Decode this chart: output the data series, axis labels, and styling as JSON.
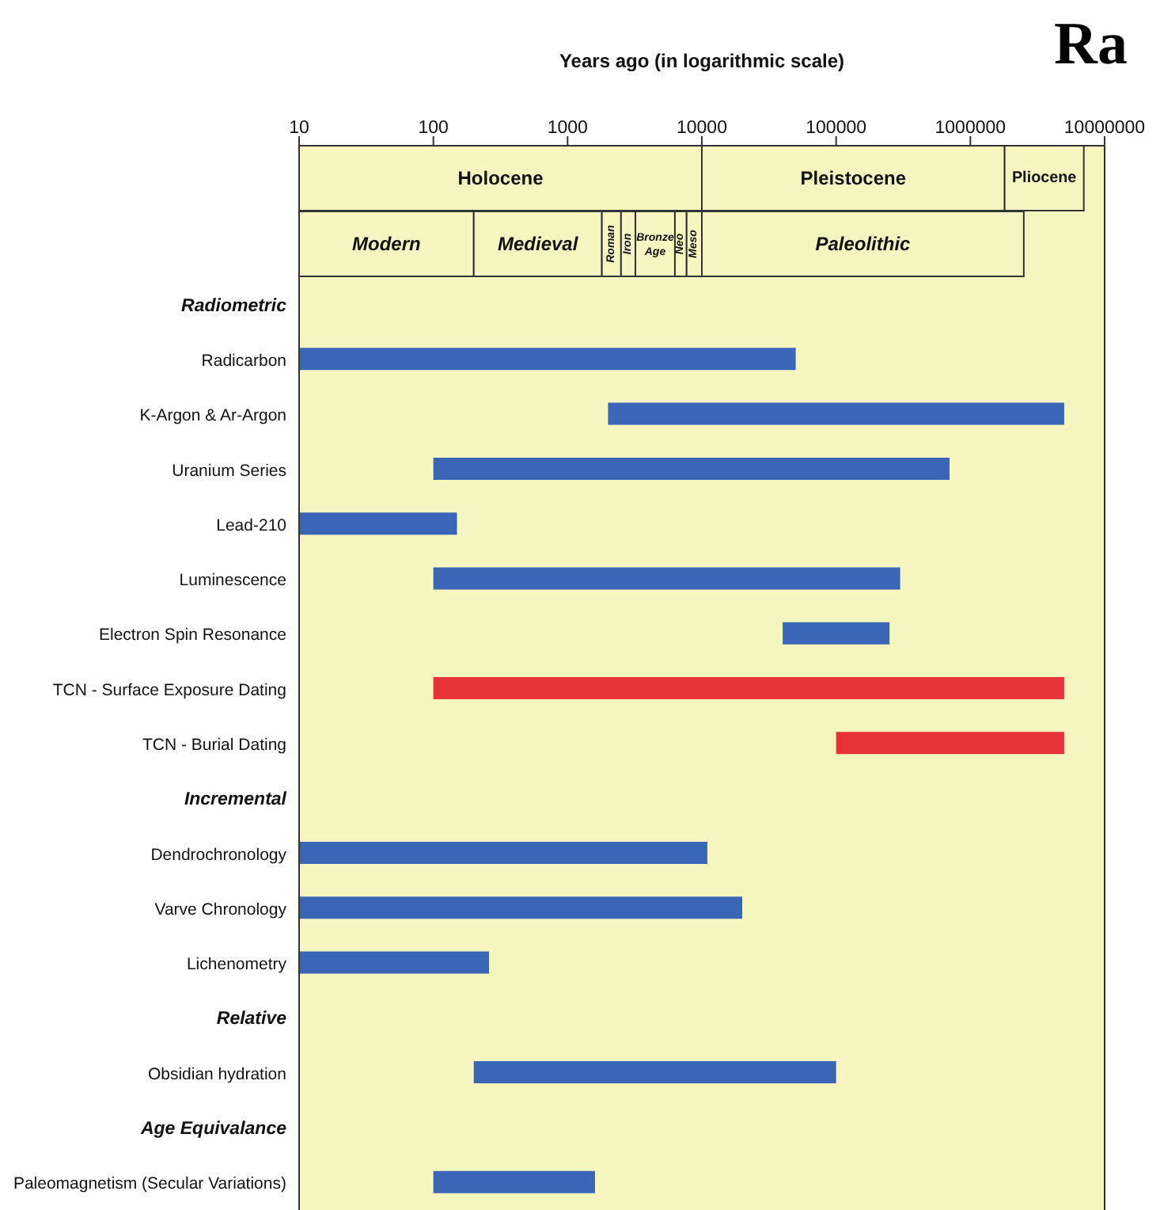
{
  "chart_data": [
    {
      "type": "bar",
      "orientation": "horizontal",
      "stacked": true,
      "title": "Ra",
      "xlabel": "Years ago (in logarithmic scale)",
      "log": "x",
      "tick_labels": "x",
      "categories": [
        null,
        null
      ],
      "series": [
        {
          "color": "#f8f6c0",
          "values": [
            9990,
            190
          ],
          "value_labels": [
            "Holocene",
            "Modern"
          ]
        },
        {
          "color": "#f8f6c0",
          "values": [
            1790000,
            1600
          ],
          "value_labels": [
            "Pleistocene",
            "Medieval"
          ]
        },
        {
          "color": "#f8f6c0",
          "values": [
            5200000,
            700
          ],
          "value_labels": [
            "Pliocene",
            "Roman"
          ]
        },
        {
          "color": "#f8f6c0",
          "values": [
            null,
            700
          ],
          "value_labels": [
            null,
            "Iron"
          ]
        },
        {
          "color": "#f8f6c0",
          "values": [
            null,
            3100
          ],
          "value_labels": [
            null,
            "Bronze Age"
          ]
        },
        {
          "color": "#f8f6c0",
          "values": [
            null,
            1400
          ],
          "value_labels": [
            null,
            "Neo"
          ]
        },
        {
          "color": "#f8f6c0",
          "values": [
            null,
            2300
          ],
          "value_labels": [
            null,
            "Meso"
          ]
        },
        {
          "color": "#f8f6c0",
          "values": [
            null,
            2490000
          ],
          "value_labels": [
            null,
            "Paleolithic"
          ]
        }
      ],
      "xlim": [
        10,
        10000000
      ],
      "xticks": [
        10,
        100,
        1000,
        10000,
        100000,
        1000000,
        10000000
      ]
    },
    {
      "type": "bar",
      "orientation": "horizontal",
      "log": "x",
      "tick_labels": "y",
      "categories": [
        "Radiometric",
        "Radicarbon",
        "K-Argon & Ar-Argon",
        "Uranium Series",
        "Lead-210",
        "Luminescence",
        "Electron Spin Resonance",
        "TCN - Surface Exposure Dating",
        "TCN - Burial Dating",
        "Incremental",
        "Dendrochronology",
        "Varve Chronology",
        "Lichenometry",
        "Relative",
        "Obsidian hydration",
        "Age Equivalance",
        "Paleomagnetism (Secular Variations)"
      ],
      "base": [
        null,
        10,
        2000,
        100,
        10,
        100,
        40000,
        100,
        100000,
        null,
        10,
        10,
        10,
        null,
        200,
        null,
        100
      ],
      "values": [
        null,
        49990,
        4998000,
        699900,
        140,
        299900,
        210000,
        4999900,
        4900000,
        null,
        10990,
        19990,
        250,
        null,
        99800,
        null,
        1500
      ],
      "colors": [
        "#3a66b8",
        "#3a66b8",
        "#3a66b8",
        "#3a66b8",
        "#3a66b8",
        "#3a66b8",
        "#3a66b8",
        "#e8323a",
        "#e8323a",
        "#3a66b8",
        "#3a66b8",
        "#3a66b8",
        "#3a66b8",
        "#3a66b8",
        "#3a66b8",
        "#3a66b8",
        "#3a66b8"
      ],
      "xlim": [
        10,
        10000000
      ]
    }
  ]
}
